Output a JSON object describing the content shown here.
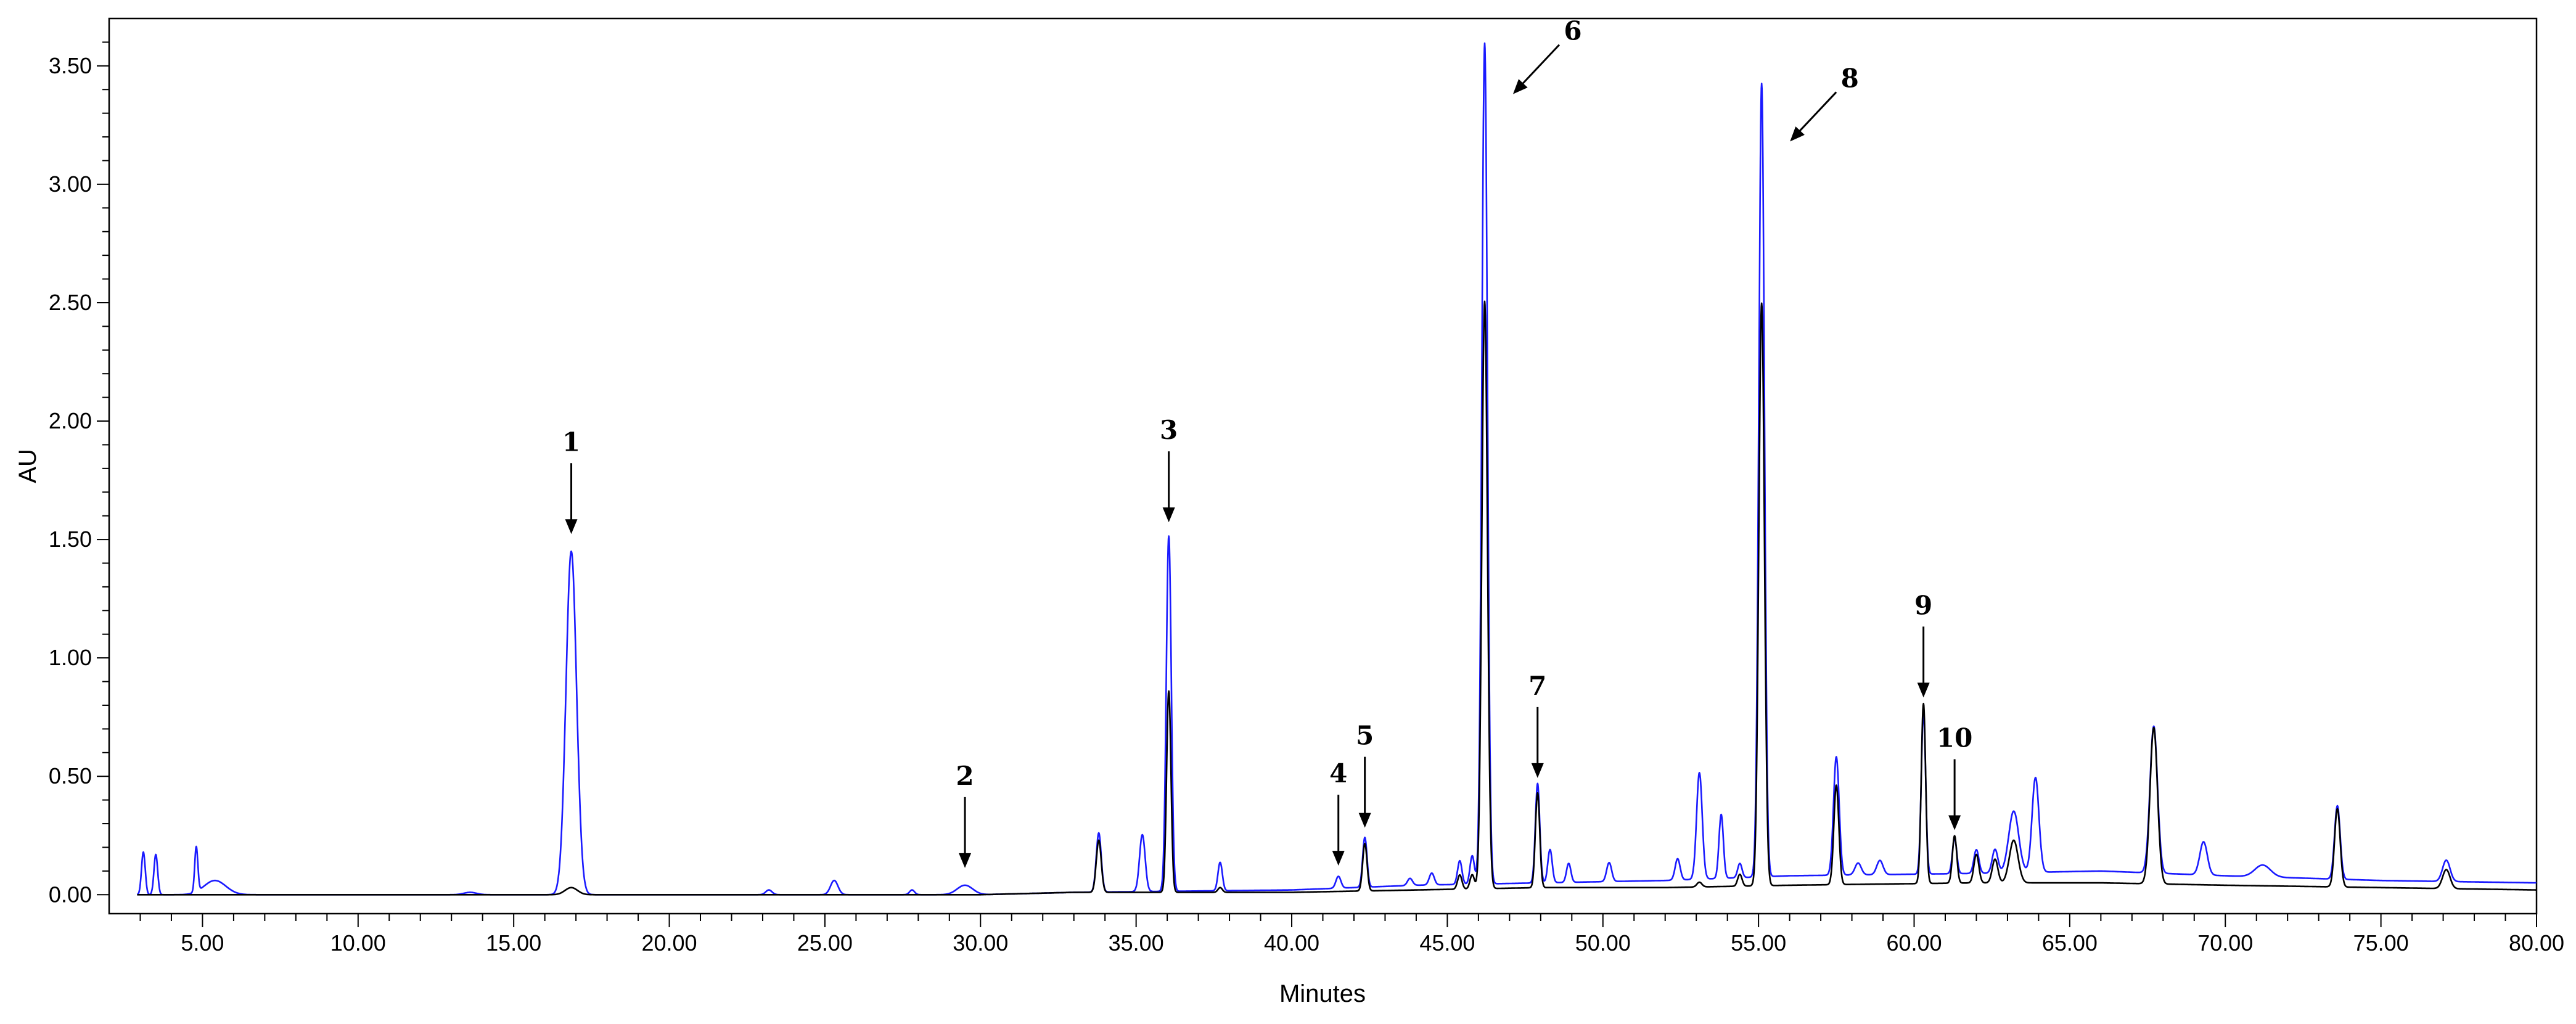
{
  "chart_data": {
    "type": "line",
    "xlabel": "Minutes",
    "ylabel": "AU",
    "xlim": [
      2.0,
      80.0
    ],
    "ylim": [
      -0.08,
      3.7
    ],
    "grid": false,
    "x_ticks": [
      5,
      10,
      15,
      20,
      25,
      30,
      35,
      40,
      45,
      50,
      55,
      60,
      65,
      70,
      75,
      80
    ],
    "x_tick_labels": [
      "5.00",
      "10.00",
      "15.00",
      "20.00",
      "25.00",
      "30.00",
      "35.00",
      "40.00",
      "45.00",
      "50.00",
      "55.00",
      "60.00",
      "65.00",
      "70.00",
      "75.00",
      "80.00"
    ],
    "y_ticks": [
      0,
      0.5,
      1.0,
      1.5,
      2.0,
      2.5,
      3.0,
      3.5
    ],
    "y_tick_labels": [
      "0.00",
      "0.50",
      "1.00",
      "1.50",
      "2.00",
      "2.50",
      "3.00",
      "3.50"
    ],
    "series": [
      {
        "color": "#1a1aff",
        "baseline": [
          [
            2.0,
            0.0
          ],
          [
            13.0,
            0.0
          ],
          [
            30.0,
            0.0
          ],
          [
            33.0,
            0.01
          ],
          [
            40.0,
            0.02
          ],
          [
            44.0,
            0.04
          ],
          [
            48.0,
            0.05
          ],
          [
            52.0,
            0.06
          ],
          [
            56.0,
            0.08
          ],
          [
            62.0,
            0.09
          ],
          [
            66.0,
            0.1
          ],
          [
            70.0,
            0.08
          ],
          [
            75.0,
            0.06
          ],
          [
            80.0,
            0.05
          ]
        ],
        "peaks": [
          {
            "rt": 3.1,
            "h": 0.18,
            "w": 0.06
          },
          {
            "rt": 3.5,
            "h": 0.17,
            "w": 0.06
          },
          {
            "rt": 4.8,
            "h": 0.19,
            "w": 0.05
          },
          {
            "rt": 5.4,
            "h": 0.06,
            "w": 0.35
          },
          {
            "rt": 13.6,
            "h": 0.01,
            "w": 0.2
          },
          {
            "rt": 16.85,
            "h": 1.45,
            "w": 0.17
          },
          {
            "rt": 23.2,
            "h": 0.02,
            "w": 0.1
          },
          {
            "rt": 25.3,
            "h": 0.06,
            "w": 0.12
          },
          {
            "rt": 27.8,
            "h": 0.02,
            "w": 0.08
          },
          {
            "rt": 29.5,
            "h": 0.04,
            "w": 0.25
          },
          {
            "rt": 33.8,
            "h": 0.25,
            "w": 0.08
          },
          {
            "rt": 35.2,
            "h": 0.24,
            "w": 0.09
          },
          {
            "rt": 36.05,
            "h": 1.5,
            "w": 0.08
          },
          {
            "rt": 37.7,
            "h": 0.12,
            "w": 0.07
          },
          {
            "rt": 41.5,
            "h": 0.05,
            "w": 0.08
          },
          {
            "rt": 42.35,
            "h": 0.21,
            "w": 0.07
          },
          {
            "rt": 43.8,
            "h": 0.03,
            "w": 0.08
          },
          {
            "rt": 44.5,
            "h": 0.05,
            "w": 0.08
          },
          {
            "rt": 45.4,
            "h": 0.1,
            "w": 0.07
          },
          {
            "rt": 45.8,
            "h": 0.12,
            "w": 0.07
          },
          {
            "rt": 46.2,
            "h": 3.55,
            "w": 0.09
          },
          {
            "rt": 47.9,
            "h": 0.42,
            "w": 0.07
          },
          {
            "rt": 48.3,
            "h": 0.14,
            "w": 0.07
          },
          {
            "rt": 48.9,
            "h": 0.08,
            "w": 0.07
          },
          {
            "rt": 50.2,
            "h": 0.08,
            "w": 0.08
          },
          {
            "rt": 52.4,
            "h": 0.09,
            "w": 0.08
          },
          {
            "rt": 53.1,
            "h": 0.45,
            "w": 0.09
          },
          {
            "rt": 53.8,
            "h": 0.27,
            "w": 0.07
          },
          {
            "rt": 54.4,
            "h": 0.06,
            "w": 0.07
          },
          {
            "rt": 55.1,
            "h": 3.35,
            "w": 0.09
          },
          {
            "rt": 57.5,
            "h": 0.5,
            "w": 0.09
          },
          {
            "rt": 58.2,
            "h": 0.05,
            "w": 0.1
          },
          {
            "rt": 58.9,
            "h": 0.06,
            "w": 0.1
          },
          {
            "rt": 60.3,
            "h": 0.68,
            "w": 0.07
          },
          {
            "rt": 61.3,
            "h": 0.15,
            "w": 0.07
          },
          {
            "rt": 62.0,
            "h": 0.1,
            "w": 0.08
          },
          {
            "rt": 62.6,
            "h": 0.1,
            "w": 0.09
          },
          {
            "rt": 63.2,
            "h": 0.26,
            "w": 0.16
          },
          {
            "rt": 63.9,
            "h": 0.4,
            "w": 0.11
          },
          {
            "rt": 67.7,
            "h": 0.62,
            "w": 0.12
          },
          {
            "rt": 69.3,
            "h": 0.14,
            "w": 0.12
          },
          {
            "rt": 71.2,
            "h": 0.05,
            "w": 0.25
          },
          {
            "rt": 73.6,
            "h": 0.31,
            "w": 0.09
          },
          {
            "rt": 77.1,
            "h": 0.09,
            "w": 0.12
          }
        ]
      },
      {
        "color": "#000000",
        "baseline": [
          [
            2.0,
            0.0
          ],
          [
            30.0,
            0.0
          ],
          [
            33.0,
            0.01
          ],
          [
            40.0,
            0.01
          ],
          [
            44.0,
            0.02
          ],
          [
            48.0,
            0.03
          ],
          [
            52.0,
            0.03
          ],
          [
            56.0,
            0.04
          ],
          [
            62.0,
            0.05
          ],
          [
            66.0,
            0.05
          ],
          [
            70.0,
            0.04
          ],
          [
            75.0,
            0.03
          ],
          [
            80.0,
            0.02
          ]
        ],
        "peaks": [
          {
            "rt": 16.85,
            "h": 0.03,
            "w": 0.2
          },
          {
            "rt": 33.8,
            "h": 0.22,
            "w": 0.08
          },
          {
            "rt": 36.05,
            "h": 0.85,
            "w": 0.07
          },
          {
            "rt": 37.7,
            "h": 0.02,
            "w": 0.07
          },
          {
            "rt": 42.35,
            "h": 0.2,
            "w": 0.07
          },
          {
            "rt": 45.4,
            "h": 0.06,
            "w": 0.07
          },
          {
            "rt": 45.8,
            "h": 0.06,
            "w": 0.07
          },
          {
            "rt": 46.2,
            "h": 2.48,
            "w": 0.09
          },
          {
            "rt": 47.9,
            "h": 0.4,
            "w": 0.07
          },
          {
            "rt": 53.1,
            "h": 0.02,
            "w": 0.08
          },
          {
            "rt": 54.4,
            "h": 0.05,
            "w": 0.07
          },
          {
            "rt": 55.1,
            "h": 2.46,
            "w": 0.09
          },
          {
            "rt": 57.5,
            "h": 0.42,
            "w": 0.08
          },
          {
            "rt": 60.3,
            "h": 0.76,
            "w": 0.07
          },
          {
            "rt": 61.3,
            "h": 0.2,
            "w": 0.07
          },
          {
            "rt": 62.0,
            "h": 0.12,
            "w": 0.08
          },
          {
            "rt": 62.6,
            "h": 0.1,
            "w": 0.09
          },
          {
            "rt": 63.2,
            "h": 0.18,
            "w": 0.14
          },
          {
            "rt": 67.7,
            "h": 0.66,
            "w": 0.12
          },
          {
            "rt": 73.6,
            "h": 0.33,
            "w": 0.09
          },
          {
            "rt": 77.1,
            "h": 0.08,
            "w": 0.12
          }
        ]
      }
    ],
    "annotations": [
      {
        "label": "1",
        "x": 16.85,
        "y": 1.45,
        "dir": "down"
      },
      {
        "label": "2",
        "x": 29.5,
        "y": 0.04,
        "dir": "down"
      },
      {
        "label": "3",
        "x": 36.05,
        "y": 1.5,
        "dir": "down"
      },
      {
        "label": "4",
        "x": 41.5,
        "y": 0.05,
        "dir": "down"
      },
      {
        "label": "5",
        "x": 42.35,
        "y": 0.21,
        "dir": "down"
      },
      {
        "label": "6",
        "x": 46.2,
        "y": 3.55,
        "dir": "diag"
      },
      {
        "label": "7",
        "x": 47.9,
        "y": 0.42,
        "dir": "down"
      },
      {
        "label": "8",
        "x": 55.1,
        "y": 3.35,
        "dir": "diag"
      },
      {
        "label": "9",
        "x": 60.3,
        "y": 0.76,
        "dir": "down"
      },
      {
        "label": "10",
        "x": 61.3,
        "y": 0.2,
        "dir": "down"
      }
    ]
  }
}
